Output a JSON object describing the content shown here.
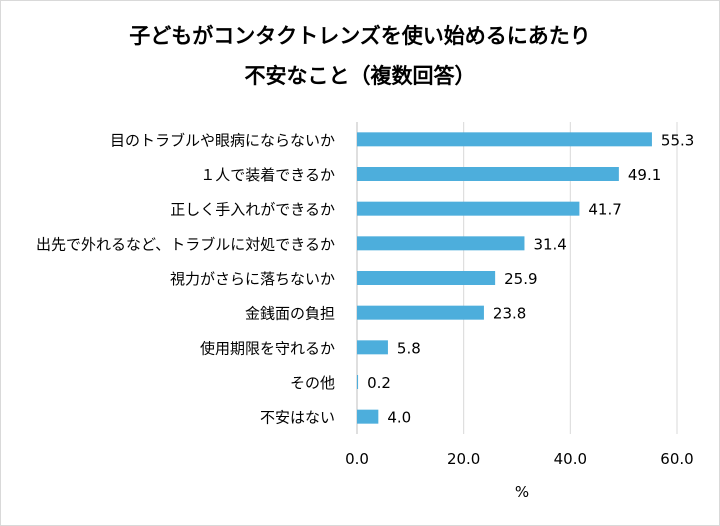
{
  "chart_data": {
    "type": "bar",
    "orientation": "horizontal",
    "title_line1": "子どもがコンタクトレンズを使い始めるにあたり",
    "title_line2": "不安なこと（複数回答）",
    "xlabel": "%",
    "ylabel": "",
    "xlim": [
      0,
      60
    ],
    "x_ticks": [
      "0.0",
      "20.0",
      "40.0",
      "60.0"
    ],
    "x_tick_values": [
      0,
      20,
      40,
      60
    ],
    "gridlines": true,
    "bar_color": "#4DAEDC",
    "grid_color": "#d9d9d9",
    "categories": [
      "目のトラブルや眼病にならないか",
      "１人で装着できるか",
      "正しく手入れができるか",
      "出先で外れるなど、トラブルに対処できるか",
      "視力がさらに落ちないか",
      "金銭面の負担",
      "使用期限を守れるか",
      "その他",
      "不安はない"
    ],
    "values": [
      55.3,
      49.1,
      41.7,
      31.4,
      25.9,
      23.8,
      5.8,
      0.2,
      4.0
    ],
    "value_labels": [
      "55.3",
      "49.1",
      "41.7",
      "31.4",
      "25.9",
      "23.8",
      "5.8",
      "0.2",
      "4.0"
    ]
  }
}
